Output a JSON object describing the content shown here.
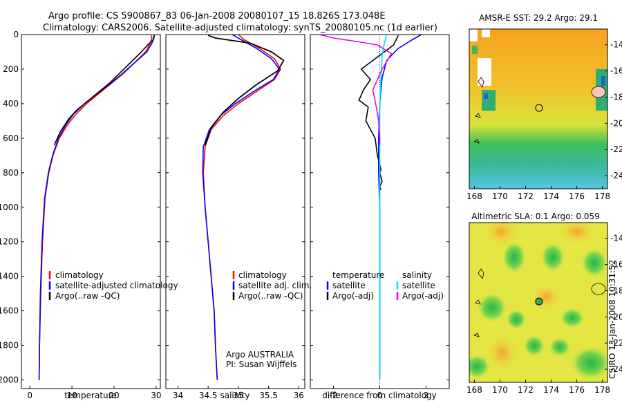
{
  "header": {
    "line1": "Argo profile: CS 5900867_83 06-Jan-2008 20080107_15 18.826S 173.048E",
    "line2": "Climatology: CARS2006. Satellite-adjusted climatology: synTS_20080105.nc (1d earlier)"
  },
  "footer": {
    "credit": "CSIRO 13-Jan-2008 10:31:52"
  },
  "colors": {
    "climatology": "#ff0000",
    "satellite": "#0000ff",
    "argo": "#000000",
    "cyan": "#00e5ee",
    "magenta": "#ee00ee"
  },
  "chart_data": [
    {
      "id": "temperature",
      "type": "line",
      "xlabel": "temperature",
      "ylabel": "",
      "xlim": [
        -2,
        31
      ],
      "ylim": [
        2050,
        0
      ],
      "xticks": [
        0,
        10,
        20,
        30
      ],
      "yticks": [
        0,
        200,
        400,
        600,
        800,
        1000,
        1200,
        1400,
        1600,
        1800,
        2000
      ],
      "legend": {
        "position": "lower-center",
        "entries": [
          "climatology",
          "satellite-adjusted climatology",
          "Argo(..raw -QC)"
        ]
      },
      "series": [
        {
          "name": "climatology",
          "color": "#ff0000",
          "x": [
            28.8,
            29.0,
            28.6,
            27.5,
            25.0,
            22.0,
            19.0,
            16.0,
            13.5,
            11.0,
            9.0,
            7.0,
            5.5,
            4.5,
            3.6,
            3.0,
            2.6,
            2.3,
            2.2
          ],
          "y": [
            5,
            20,
            50,
            100,
            160,
            230,
            290,
            350,
            400,
            460,
            520,
            600,
            700,
            800,
            950,
            1200,
            1500,
            1800,
            2000
          ]
        },
        {
          "name": "satellite-adjusted climatology",
          "color": "#0000ff",
          "x": [
            29.4,
            29.5,
            29.0,
            27.8,
            25.0,
            21.8,
            18.8,
            15.6,
            13.0,
            10.4,
            8.6,
            6.8,
            5.4,
            4.4,
            3.5,
            2.9,
            2.5,
            2.3,
            2.2
          ],
          "y": [
            5,
            20,
            50,
            100,
            160,
            230,
            290,
            350,
            400,
            460,
            520,
            600,
            700,
            800,
            950,
            1200,
            1500,
            1800,
            2000
          ]
        },
        {
          "name": "Argo(..raw -QC)",
          "color": "#000000",
          "x": [
            29.6,
            29.3,
            28.0,
            26.5,
            24.0,
            21.5,
            19.0,
            16.0,
            13.5,
            11.0,
            9.2,
            7.3,
            5.8
          ],
          "y": [
            5,
            30,
            60,
            100,
            160,
            220,
            280,
            340,
            390,
            440,
            490,
            560,
            640
          ]
        }
      ]
    },
    {
      "id": "salinity",
      "type": "line",
      "xlabel": "salinity",
      "xlim": [
        33.8,
        36.1
      ],
      "ylim": [
        2050,
        0
      ],
      "xticks": [
        34,
        34.5,
        35,
        35.5,
        36
      ],
      "yticks": [
        0,
        200,
        400,
        600,
        800,
        1000,
        1200,
        1400,
        1600,
        1800,
        2000
      ],
      "legend": {
        "position": "lower-right",
        "entries": [
          "climatology",
          "satellite adj. clim.",
          "Argo(..raw -QC)"
        ]
      },
      "annotation": {
        "line1": "Argo AUSTRALIA",
        "line2": "PI: Susan Wijffels"
      },
      "series": [
        {
          "name": "climatology",
          "color": "#ff0000",
          "x": [
            35.0,
            35.1,
            35.35,
            35.6,
            35.7,
            35.6,
            35.3,
            35.0,
            34.75,
            34.55,
            34.45,
            34.42,
            34.45,
            34.5,
            34.55,
            34.6,
            34.62,
            34.65
          ],
          "y": [
            0,
            30,
            80,
            140,
            200,
            260,
            330,
            400,
            470,
            550,
            650,
            800,
            1000,
            1200,
            1400,
            1600,
            1800,
            2000
          ]
        },
        {
          "name": "satellite adj. clim.",
          "color": "#0000ff",
          "x": [
            34.9,
            35.05,
            35.3,
            35.55,
            35.68,
            35.58,
            35.25,
            34.95,
            34.7,
            34.52,
            34.42,
            34.41,
            34.45,
            34.5,
            34.55,
            34.6,
            34.62,
            34.65
          ],
          "y": [
            0,
            30,
            80,
            140,
            200,
            260,
            330,
            400,
            470,
            550,
            650,
            800,
            1000,
            1200,
            1400,
            1600,
            1800,
            2000
          ]
        },
        {
          "name": "Argo(..raw -QC)",
          "color": "#000000",
          "x": [
            34.5,
            34.62,
            35.2,
            35.55,
            35.75,
            35.65,
            35.3,
            35.0,
            34.75,
            34.55,
            34.45
          ],
          "y": [
            5,
            20,
            50,
            100,
            150,
            210,
            290,
            370,
            450,
            540,
            640
          ]
        }
      ]
    },
    {
      "id": "difference",
      "type": "line",
      "xlabel": "difference from climatology",
      "xlim": [
        -3,
        3
      ],
      "ylim": [
        2050,
        0
      ],
      "xticks": [
        -2,
        0,
        2
      ],
      "yticks": [
        0,
        200,
        400,
        600,
        800,
        1000,
        1200,
        1400,
        1600,
        1800,
        2000
      ],
      "legend": {
        "position": "lower-center",
        "group1_title": "temperature",
        "group2_title": "salinity",
        "entries": [
          "satellite",
          "Argo(-adj)",
          "satellite",
          "Argo(-adj)"
        ]
      },
      "series": [
        {
          "name": "temperature satellite",
          "color": "#0000ff",
          "x": [
            1.8,
            1.4,
            0.8,
            0.3,
            0.1,
            0.0,
            -0.05,
            -0.05,
            0.0,
            0.0,
            0.0,
            0.0
          ],
          "y": [
            0,
            30,
            80,
            150,
            250,
            400,
            600,
            800,
            1000,
            1400,
            1800,
            2000
          ]
        },
        {
          "name": "temperature Argo(-adj)",
          "color": "#000000",
          "x": [
            0.8,
            0.6,
            0.2,
            -0.5,
            -0.8,
            -0.4,
            -0.7,
            -0.9,
            -0.5,
            -0.6,
            -0.2,
            -0.1,
            0.05,
            0.0,
            0.1,
            0.0,
            0.05
          ],
          "y": [
            5,
            60,
            100,
            170,
            200,
            260,
            320,
            380,
            420,
            500,
            600,
            700,
            780,
            800,
            850,
            880,
            900
          ]
        },
        {
          "name": "salinity satellite",
          "color": "#00e5ee",
          "x": [
            0.3,
            0.2,
            0.1,
            0.05,
            0.0,
            0.0,
            0.0,
            0.0,
            0.0,
            0.0,
            0.0
          ],
          "y": [
            0,
            50,
            120,
            250,
            400,
            600,
            800,
            1000,
            1400,
            1800,
            2000
          ]
        },
        {
          "name": "salinity Argo(-adj)",
          "color": "#ee00ee",
          "x": [
            -2.6,
            -2.0,
            -1.0,
            -0.1,
            0.5,
            0.1,
            -0.3,
            -0.15,
            -0.05,
            0.0,
            0.0
          ],
          "y": [
            0,
            20,
            40,
            60,
            110,
            200,
            320,
            420,
            500,
            600,
            640
          ]
        }
      ]
    },
    {
      "id": "sst_map",
      "type": "heatmap",
      "title": "AMSR-E SST: 29.2 Argo: 29.1",
      "xticks": [
        168,
        170,
        172,
        174,
        176,
        178
      ],
      "yticks": [
        -14,
        -16,
        -18,
        -20,
        -22,
        -24
      ],
      "xlim": [
        167.6,
        178.4
      ],
      "ylim": [
        -25,
        -12.8
      ],
      "marker": {
        "lon": 173.048,
        "lat": -18.826
      }
    },
    {
      "id": "sla_map",
      "type": "heatmap",
      "title": "Altimetric SLA: 0.1 Argo: 0.059",
      "xticks": [
        168,
        170,
        172,
        174,
        176,
        178
      ],
      "yticks": [
        -14,
        -16,
        -18,
        -20,
        -22,
        -24
      ],
      "xlim": [
        167.6,
        178.4
      ],
      "ylim": [
        -25,
        -12.8
      ],
      "marker": {
        "lon": 173.048,
        "lat": -18.826
      }
    }
  ]
}
